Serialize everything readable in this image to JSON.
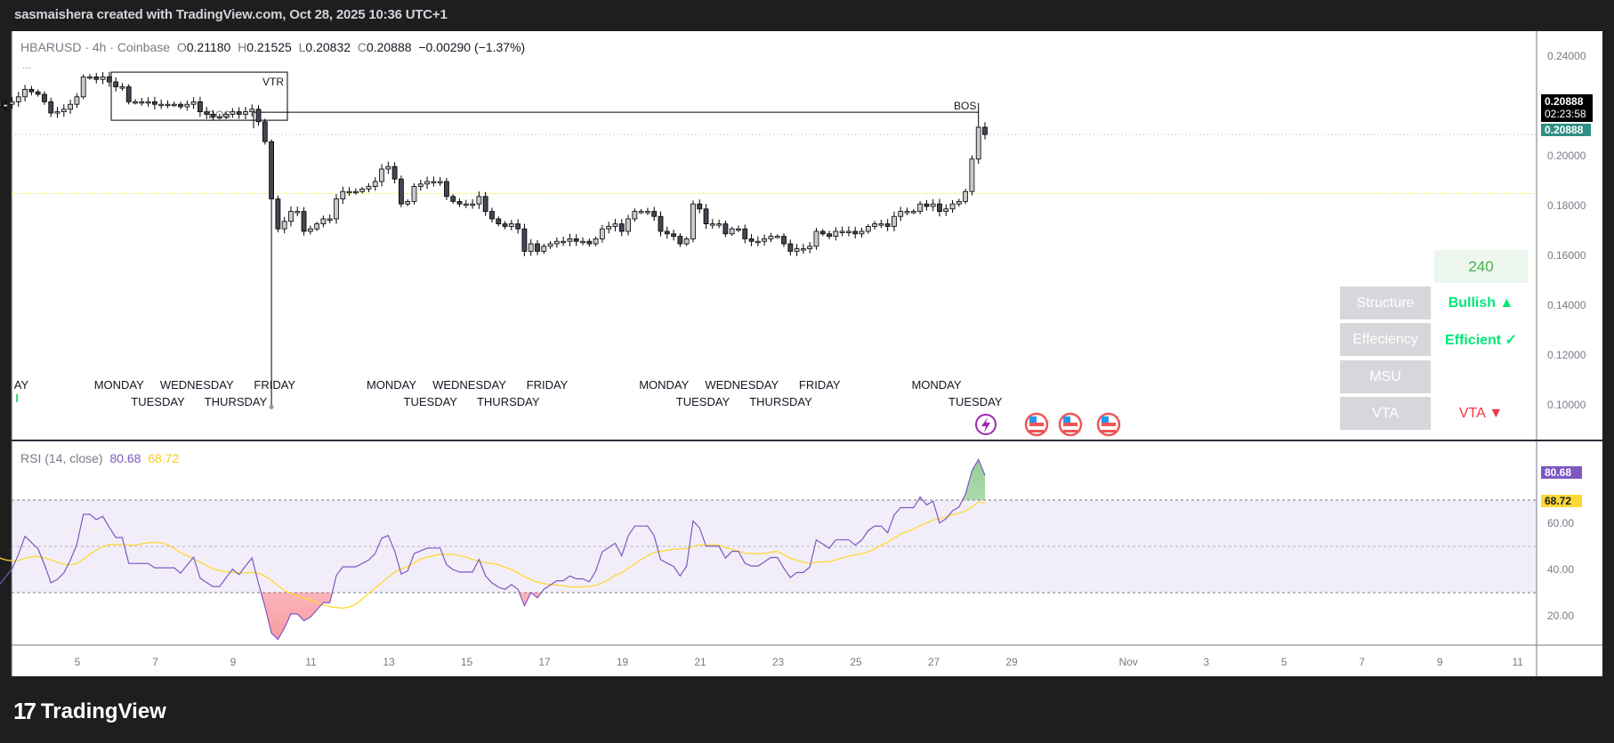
{
  "header": {
    "attribution": "sasmaishera created with TradingView.com, Oct 28, 2025 10:36 UTC+1"
  },
  "legend": {
    "symbol": "HBARUSD · 4h · Coinbase",
    "open_label": "O",
    "open": "0.21180",
    "high_label": "H",
    "high": "0.21525",
    "low_label": "L",
    "low": "0.20832",
    "close_label": "C",
    "close": "0.20888",
    "change": "−0.00290 (−1.37%)",
    "more": "..."
  },
  "price_axis": {
    "labels": [
      "0.24000",
      "0.20000",
      "0.18000",
      "0.16000",
      "0.14000",
      "0.12000",
      "0.10000"
    ],
    "current_price": "0.20888",
    "countdown": "02:23:58",
    "last_price": "0.20888"
  },
  "annotations": {
    "vtr": "VTR",
    "bos_left": "BOS",
    "bos_right": "BOS"
  },
  "day_labels": [
    "AY",
    "MONDAY",
    "TUESDAY",
    "WEDNESDAY",
    "THURSDAY",
    "FRIDAY",
    "MONDAY",
    "TUESDAY",
    "WEDNESDAY",
    "THURSDAY",
    "FRIDAY",
    "MONDAY",
    "TUESDAY",
    "WEDNESDAY",
    "THURSDAY",
    "FRIDAY",
    "MONDAY",
    "TUESDAY"
  ],
  "table": {
    "timeframe": "240",
    "rows": [
      {
        "label": "Structure",
        "value": "Bullish ▲"
      },
      {
        "label": "Effeciency",
        "value": "Efficient ✓"
      },
      {
        "label": "MSU",
        "value": ""
      },
      {
        "label": "VTA",
        "value": "VTA ▼"
      }
    ]
  },
  "rsi": {
    "title": "RSI (14, close)",
    "value": "80.68",
    "ma": "68.72",
    "axis": [
      "60.00",
      "40.00",
      "20.00"
    ]
  },
  "time_axis": [
    "5",
    "7",
    "9",
    "11",
    "13",
    "15",
    "17",
    "19",
    "21",
    "23",
    "25",
    "27",
    "29",
    "Nov",
    "3",
    "5",
    "7",
    "9",
    "11"
  ],
  "footer": {
    "logo": "TradingView"
  },
  "colors": {
    "bull": "#c9cacf",
    "bear": "#434651",
    "rsi": "#7e57c2",
    "rsi_ma": "#fdd835",
    "teal": "#2f8f83",
    "green": "#00e676",
    "red": "#f23645",
    "table_green": "#4caf50"
  },
  "chart_data": {
    "type": "candlestick",
    "symbol": "HBARUSD",
    "interval": "4h",
    "ylim": [
      0.09,
      0.25
    ],
    "closes": [
      0.226,
      0.227,
      0.226,
      0.227,
      0.227,
      0.226,
      0.225,
      0.222,
      0.22,
      0.221,
      0.222,
      0.224,
      0.227,
      0.226,
      0.225,
      0.222,
      0.2175,
      0.218,
      0.219,
      0.221,
      0.224,
      0.232,
      0.232,
      0.231,
      0.232,
      0.23,
      0.228,
      0.228,
      0.222,
      0.222,
      0.222,
      0.222,
      0.221,
      0.221,
      0.221,
      0.221,
      0.22,
      0.221,
      0.222,
      0.218,
      0.217,
      0.216,
      0.216,
      0.217,
      0.218,
      0.217,
      0.218,
      0.219,
      0.214,
      0.206,
      0.183,
      0.171,
      0.174,
      0.178,
      0.178,
      0.17,
      0.171,
      0.173,
      0.175,
      0.175,
      0.183,
      0.186,
      0.186,
      0.186,
      0.187,
      0.188,
      0.19,
      0.195,
      0.196,
      0.191,
      0.181,
      0.182,
      0.188,
      0.189,
      0.19,
      0.19,
      0.19,
      0.184,
      0.182,
      0.181,
      0.181,
      0.181,
      0.184,
      0.178,
      0.175,
      0.173,
      0.172,
      0.173,
      0.171,
      0.162,
      0.165,
      0.162,
      0.164,
      0.165,
      0.166,
      0.166,
      0.167,
      0.166,
      0.166,
      0.165,
      0.167,
      0.171,
      0.172,
      0.173,
      0.17,
      0.175,
      0.178,
      0.178,
      0.178,
      0.176,
      0.17,
      0.169,
      0.168,
      0.165,
      0.167,
      0.181,
      0.179,
      0.173,
      0.173,
      0.173,
      0.169,
      0.171,
      0.171,
      0.167,
      0.166,
      0.166,
      0.167,
      0.168,
      0.168,
      0.165,
      0.162,
      0.163,
      0.163,
      0.164,
      0.17,
      0.169,
      0.168,
      0.17,
      0.17,
      0.17,
      0.169,
      0.17,
      0.172,
      0.173,
      0.173,
      0.172,
      0.176,
      0.178,
      0.178,
      0.178,
      0.181,
      0.18,
      0.181,
      0.178,
      0.179,
      0.181,
      0.182,
      0.186,
      0.199,
      0.2118,
      0.20888
    ],
    "crash_low": 0.0995,
    "levels": {
      "bos": 0.2178,
      "yellow_dotted": 0.1852,
      "vtr_box": [
        0.2339,
        0.2146
      ]
    },
    "rsi_levels": [
      70,
      50,
      30
    ],
    "rsi_last": 80.68,
    "rsi_ma_last": 68.72
  }
}
